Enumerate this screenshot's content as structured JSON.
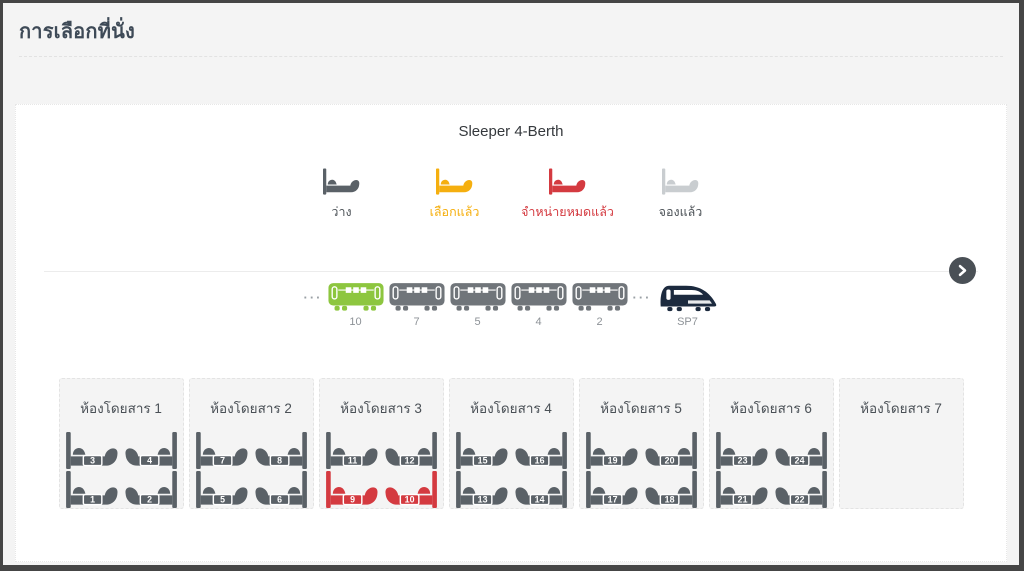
{
  "header": {
    "title": "การเลือกที่นั่ง"
  },
  "panel": {
    "coach_type": "Sleeper 4-Berth"
  },
  "legend": {
    "items": [
      {
        "label": "ว่าง",
        "status": "available"
      },
      {
        "label": "เลือกแล้ว",
        "status": "selected"
      },
      {
        "label": "จำหน่ายหมดแล้ว",
        "status": "soldout"
      },
      {
        "label": "จองแล้ว",
        "status": "reserved"
      }
    ]
  },
  "train": {
    "units": [
      {
        "type": "ellipsis",
        "label": ""
      },
      {
        "type": "carriage",
        "label": "10",
        "state": "selected"
      },
      {
        "type": "carriage",
        "label": "7",
        "state": "default"
      },
      {
        "type": "carriage",
        "label": "5",
        "state": "default"
      },
      {
        "type": "carriage",
        "label": "4",
        "state": "default"
      },
      {
        "type": "carriage",
        "label": "2",
        "state": "default"
      },
      {
        "type": "ellipsis",
        "label": ""
      },
      {
        "type": "locomotive",
        "label": "SP7",
        "state": "default"
      }
    ]
  },
  "cabins": [
    {
      "label": "ห้องโดยสาร 1",
      "berths": [
        {
          "number": "3",
          "status": "available",
          "side": "left"
        },
        {
          "number": "4",
          "status": "available",
          "side": "right"
        },
        {
          "number": "1",
          "status": "available",
          "side": "left"
        },
        {
          "number": "2",
          "status": "available",
          "side": "right"
        }
      ]
    },
    {
      "label": "ห้องโดยสาร 2",
      "berths": [
        {
          "number": "7",
          "status": "available",
          "side": "left"
        },
        {
          "number": "8",
          "status": "available",
          "side": "right"
        },
        {
          "number": "5",
          "status": "available",
          "side": "left"
        },
        {
          "number": "6",
          "status": "available",
          "side": "right"
        }
      ]
    },
    {
      "label": "ห้องโดยสาร 3",
      "berths": [
        {
          "number": "11",
          "status": "available",
          "side": "left"
        },
        {
          "number": "12",
          "status": "available",
          "side": "right"
        },
        {
          "number": "9",
          "status": "soldout",
          "side": "left"
        },
        {
          "number": "10",
          "status": "soldout",
          "side": "right"
        }
      ]
    },
    {
      "label": "ห้องโดยสาร 4",
      "berths": [
        {
          "number": "15",
          "status": "available",
          "side": "left"
        },
        {
          "number": "16",
          "status": "available",
          "side": "right"
        },
        {
          "number": "13",
          "status": "available",
          "side": "left"
        },
        {
          "number": "14",
          "status": "available",
          "side": "right"
        }
      ]
    },
    {
      "label": "ห้องโดยสาร 5",
      "berths": [
        {
          "number": "19",
          "status": "available",
          "side": "left"
        },
        {
          "number": "20",
          "status": "available",
          "side": "right"
        },
        {
          "number": "17",
          "status": "available",
          "side": "left"
        },
        {
          "number": "18",
          "status": "available",
          "side": "right"
        }
      ]
    },
    {
      "label": "ห้องโดยสาร 6",
      "berths": [
        {
          "number": "23",
          "status": "available",
          "side": "left"
        },
        {
          "number": "24",
          "status": "available",
          "side": "right"
        },
        {
          "number": "21",
          "status": "available",
          "side": "left"
        },
        {
          "number": "22",
          "status": "available",
          "side": "right"
        }
      ]
    },
    {
      "label": "ห้องโดยสาร 7",
      "berths": []
    }
  ],
  "colors": {
    "available": "#5a6167",
    "selected": "#f5af0f",
    "soldout": "#d43a40",
    "reserved": "#c9cdd0",
    "legend_text": "#4c5257",
    "carriage_default": "#70757a",
    "carriage_selected": "#8dc63f",
    "locomotive": "#1c2a3e",
    "arrow_circle": "#4a5056"
  }
}
